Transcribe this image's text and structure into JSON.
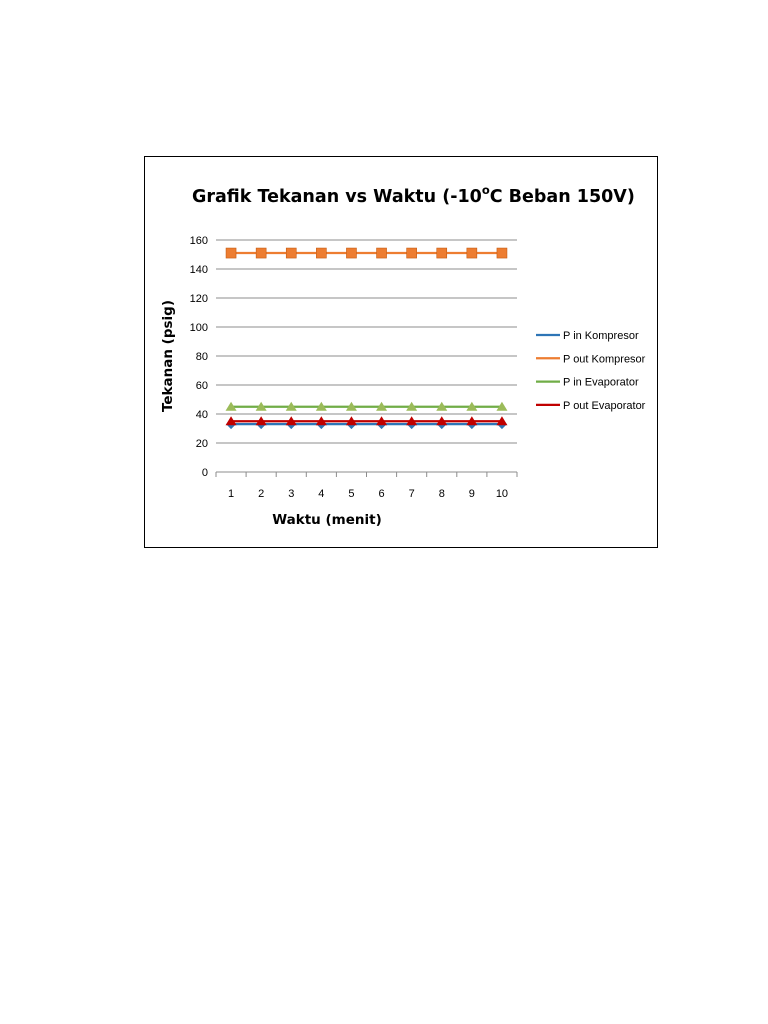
{
  "chart_data": {
    "type": "line",
    "title": "Grafik Tekanan vs Waktu (-10",
    "title_superscript": "o",
    "title_suffix": "C Beban 150V)",
    "xlabel": "Waktu (menit)",
    "ylabel": "Tekanan (psig)",
    "categories": [
      "1",
      "2",
      "3",
      "4",
      "5",
      "6",
      "7",
      "8",
      "9",
      "10"
    ],
    "ylim": [
      0,
      160
    ],
    "yticks": [
      "0",
      "20",
      "40",
      "60",
      "80",
      "100",
      "120",
      "140",
      "160"
    ],
    "grid": true,
    "legend_position": "right",
    "series": [
      {
        "name": "P in Kompresor",
        "color": "#2e75b6",
        "marker": "diamond",
        "marker_color": "#2e75b6",
        "values": [
          33,
          33,
          33,
          33,
          33,
          33,
          33,
          33,
          33,
          33
        ]
      },
      {
        "name": "P out Kompresor",
        "color": "#ed7d31",
        "marker": "square",
        "marker_color": "#ed7d31",
        "values": [
          151,
          151,
          151,
          151,
          151,
          151,
          151,
          151,
          151,
          151
        ]
      },
      {
        "name": "P in Evaporator",
        "color": "#70ad47",
        "marker": "triangle",
        "marker_color": "#9bbb59",
        "values": [
          45,
          45,
          45,
          45,
          45,
          45,
          45,
          45,
          45,
          45
        ]
      },
      {
        "name": "P out Evaporator",
        "color": "#c00000",
        "marker": "triangle",
        "marker_color": "#c00000",
        "values": [
          35,
          35,
          35,
          35,
          35,
          35,
          35,
          35,
          35,
          35
        ]
      }
    ]
  }
}
